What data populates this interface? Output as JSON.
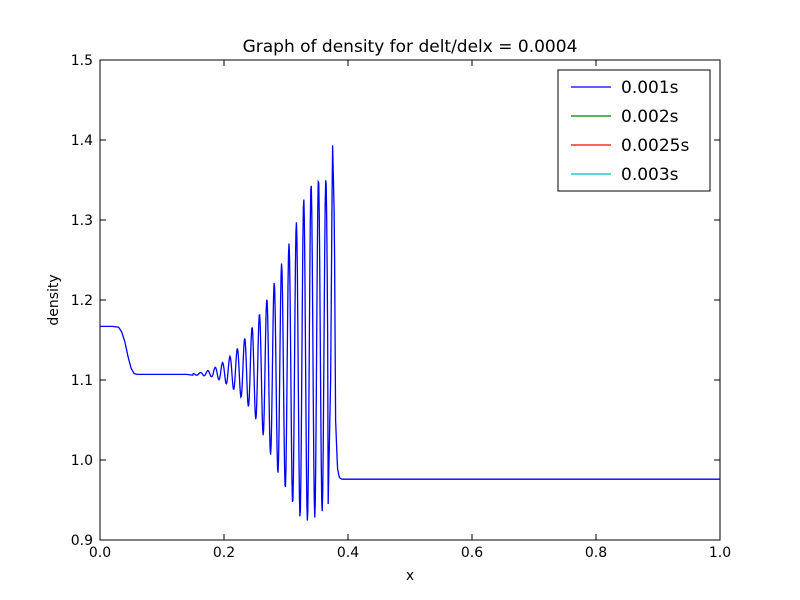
{
  "chart_data": {
    "type": "line",
    "title": "Graph of density for delt/delx = 0.0004",
    "xlabel": "x",
    "ylabel": "density",
    "xlim": [
      0.0,
      1.0
    ],
    "ylim": [
      0.9,
      1.5
    ],
    "x_ticks": [
      "0.0",
      "0.2",
      "0.4",
      "0.6",
      "0.8",
      "1.0"
    ],
    "y_ticks": [
      "0.9",
      "1.0",
      "1.1",
      "1.2",
      "1.3",
      "1.4",
      "1.5"
    ],
    "grid": false,
    "legend_position": "top-right",
    "series": [
      {
        "name": "0.001s",
        "color": "#0000ff",
        "points": [
          [
            0.0,
            1.167
          ],
          [
            0.02,
            1.167
          ],
          [
            0.03,
            1.166
          ],
          [
            0.035,
            1.16
          ],
          [
            0.04,
            1.148
          ],
          [
            0.045,
            1.13
          ],
          [
            0.05,
            1.115
          ],
          [
            0.055,
            1.108
          ],
          [
            0.06,
            1.107
          ],
          [
            0.07,
            1.107
          ],
          [
            0.1,
            1.107
          ],
          [
            0.12,
            1.107
          ],
          [
            0.14,
            1.107
          ],
          [
            0.15,
            1.106
          ],
          [
            0.16,
            1.106
          ],
          [
            0.17,
            1.105
          ],
          [
            0.18,
            1.104
          ],
          [
            0.19,
            1.101
          ],
          [
            0.2,
            1.097
          ],
          [
            0.21,
            1.092
          ],
          [
            0.22,
            1.085
          ],
          [
            0.23,
            1.076
          ],
          [
            0.24,
            1.066
          ],
          [
            0.25,
            1.053
          ],
          [
            0.26,
            1.037
          ],
          [
            0.27,
            1.018
          ],
          [
            0.28,
            0.995
          ],
          [
            0.29,
            0.978
          ],
          [
            0.3,
            0.962
          ],
          [
            0.31,
            0.946
          ],
          [
            0.32,
            0.93
          ],
          [
            0.33,
            0.923
          ],
          [
            0.34,
            0.925
          ],
          [
            0.35,
            0.93
          ],
          [
            0.36,
            0.937
          ],
          [
            0.368,
            0.945
          ],
          [
            0.372,
            1.1
          ],
          [
            0.375,
            1.4
          ],
          [
            0.378,
            1.3
          ],
          [
            0.38,
            1.05
          ],
          [
            0.383,
            0.99
          ],
          [
            0.386,
            0.978
          ],
          [
            0.39,
            0.976
          ],
          [
            0.4,
            0.976
          ],
          [
            0.5,
            0.976
          ],
          [
            0.6,
            0.976
          ],
          [
            0.7,
            0.976
          ],
          [
            0.8,
            0.976
          ],
          [
            0.9,
            0.976
          ],
          [
            1.0,
            0.976
          ]
        ],
        "oscillation_peaks": [
          [
            0.15,
            1.108
          ],
          [
            0.16,
            1.109
          ],
          [
            0.17,
            1.111
          ],
          [
            0.18,
            1.113
          ],
          [
            0.19,
            1.118
          ],
          [
            0.2,
            1.123
          ],
          [
            0.21,
            1.13
          ],
          [
            0.22,
            1.138
          ],
          [
            0.23,
            1.148
          ],
          [
            0.24,
            1.16
          ],
          [
            0.25,
            1.172
          ],
          [
            0.26,
            1.187
          ],
          [
            0.27,
            1.203
          ],
          [
            0.28,
            1.22
          ],
          [
            0.29,
            1.24
          ],
          [
            0.3,
            1.26
          ],
          [
            0.31,
            1.282
          ],
          [
            0.32,
            1.305
          ],
          [
            0.33,
            1.33
          ],
          [
            0.345,
            1.352
          ]
        ]
      },
      {
        "name": "0.002s",
        "color": "#008000",
        "points": []
      },
      {
        "name": "0.0025s",
        "color": "#ff0000",
        "points": []
      },
      {
        "name": "0.003s",
        "color": "#00bfbf",
        "points": []
      }
    ]
  }
}
